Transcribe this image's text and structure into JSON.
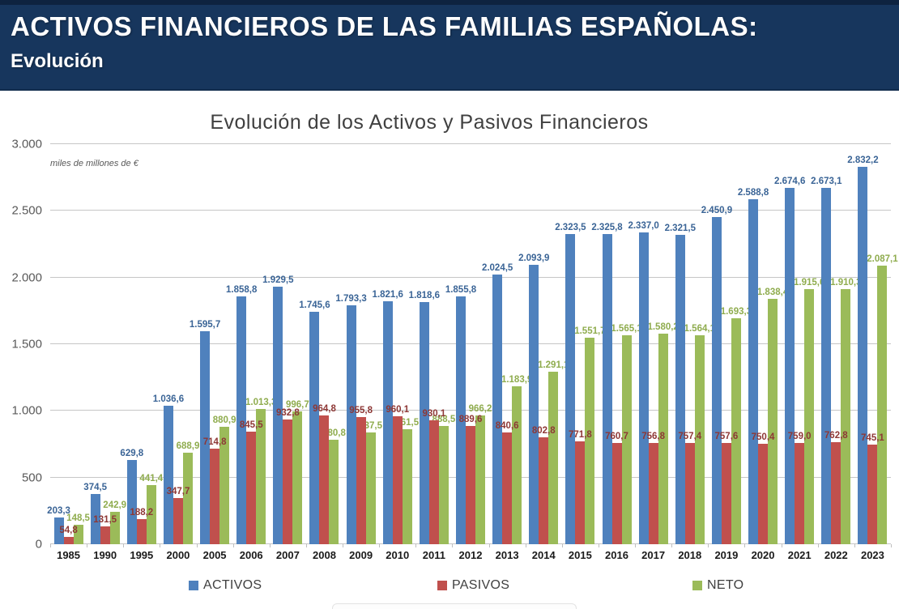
{
  "header": {
    "title": "ACTIVOS FINANCIEROS DE LAS FAMILIAS ESPAÑOLAS:",
    "subtitle": "Evolución"
  },
  "chart_data": {
    "type": "bar",
    "title": "Evolución de los Activos y Pasivos Financieros",
    "unit_note": "miles de millones de €",
    "ylabel": "miles de millones de €",
    "xlabel": "",
    "ylim": [
      0,
      3000
    ],
    "grid": true,
    "legend_position": "bottom",
    "y_ticks": [
      {
        "label": "0",
        "value": 0
      },
      {
        "label": "500",
        "value": 500
      },
      {
        "label": "1.000",
        "value": 1000
      },
      {
        "label": "1.500",
        "value": 1500
      },
      {
        "label": "2.000",
        "value": 2000
      },
      {
        "label": "2.500",
        "value": 2500
      },
      {
        "label": "3.000",
        "value": 3000
      }
    ],
    "categories": [
      "1985",
      "1990",
      "1995",
      "2000",
      "2005",
      "2006",
      "2007",
      "2008",
      "2009",
      "2010",
      "2011",
      "2012",
      "2013",
      "2014",
      "2015",
      "2016",
      "2017",
      "2018",
      "2019",
      "2020",
      "2021",
      "2022",
      "2023"
    ],
    "series": [
      {
        "name": "ACTIVOS",
        "color": "#4F81BD",
        "label_color": "#3A6496",
        "values": [
          203.3,
          374.5,
          629.8,
          1036.6,
          1595.7,
          1858.8,
          1929.5,
          1745.6,
          1793.3,
          1821.6,
          1818.6,
          1855.8,
          2024.5,
          2093.9,
          2323.5,
          2325.8,
          2337.0,
          2321.5,
          2450.9,
          2588.8,
          2674.6,
          2673.1,
          2832.2
        ],
        "labels": [
          "203,3",
          "374,5",
          "629,8",
          "1.036,6",
          "1.595,7",
          "1.858,8",
          "1.929,5",
          "1.745,6",
          "1.793,3",
          "1.821,6",
          "1.818,6",
          "1.855,8",
          "2.024,5",
          "2.093,9",
          "2.323,5",
          "2.325,8",
          "2.337,0",
          "2.321,5",
          "2.450,9",
          "2.588,8",
          "2.674,6",
          "2.673,1",
          "2.832,2"
        ]
      },
      {
        "name": "PASIVOS",
        "color": "#C0504D",
        "label_color": "#8E3735",
        "values": [
          54.8,
          131.5,
          188.2,
          347.7,
          714.8,
          845.5,
          932.8,
          964.8,
          955.8,
          960.1,
          930.1,
          889.6,
          840.6,
          802.8,
          771.8,
          760.7,
          756.8,
          757.4,
          757.6,
          750.4,
          759.0,
          762.8,
          745.1
        ],
        "labels": [
          "54,8",
          "131,5",
          "188,2",
          "347,7",
          "714,8",
          "845,5",
          "932,8",
          "964,8",
          "955,8",
          "960,1",
          "930,1",
          "889,6",
          "840,6",
          "802,8",
          "771,8",
          "760,7",
          "756,8",
          "757,4",
          "757,6",
          "750,4",
          "759,0",
          "762,8",
          "745,1"
        ]
      },
      {
        "name": "NETO",
        "color": "#9BBB59",
        "label_color": "#8FAC4E",
        "values": [
          148.5,
          242.9,
          441.4,
          688.9,
          880.9,
          1013.3,
          996.7,
          780.8,
          837.5,
          861.5,
          888.5,
          966.2,
          1183.9,
          1291.1,
          1551.7,
          1565.1,
          1580.2,
          1564.1,
          1693.3,
          1838.4,
          1915.6,
          1910.3,
          2087.1
        ],
        "labels": [
          "148,5",
          "242,9",
          "441,4",
          "688,9",
          "880,9",
          "1.013,3",
          "996,7",
          "780,8",
          "837,5",
          "861,5",
          "888,5",
          "966,2",
          "1.183,9",
          "1.291,1",
          "1.551,7",
          "1.565,1",
          "1.580,2",
          "1.564,1",
          "1.693,3",
          "1.838,4",
          "1.915,6",
          "1.910,3",
          "2.087,1"
        ]
      }
    ]
  }
}
